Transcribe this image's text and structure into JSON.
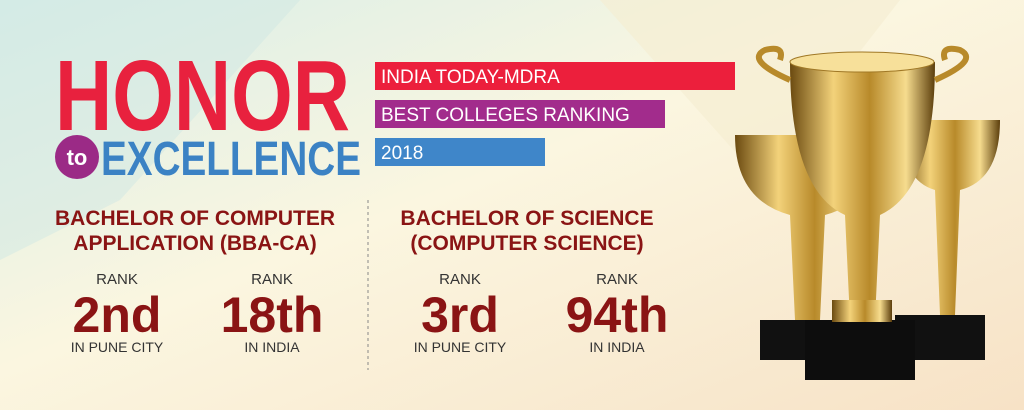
{
  "header": {
    "title": "HONOR",
    "connector": "to",
    "subtitle": "EXCELLENCE",
    "ribbons": [
      "INDIA TODAY-MDRA",
      "BEST COLLEGES RANKING",
      "2018"
    ]
  },
  "programs": [
    {
      "name_lines": [
        "BACHELOR OF COMPUTER",
        "APPLICATION (BBA-CA)"
      ],
      "ranks": [
        {
          "label": "RANK",
          "value": "2nd",
          "scope": "IN PUNE CITY"
        },
        {
          "label": "RANK",
          "value": "18th",
          "scope": "IN INDIA"
        }
      ]
    },
    {
      "name_lines": [
        "BACHELOR OF SCIENCE",
        "(COMPUTER SCIENCE)"
      ],
      "ranks": [
        {
          "label": "RANK",
          "value": "3rd",
          "scope": "IN PUNE CITY"
        },
        {
          "label": "RANK",
          "value": "94th",
          "scope": "IN INDIA"
        }
      ]
    }
  ]
}
